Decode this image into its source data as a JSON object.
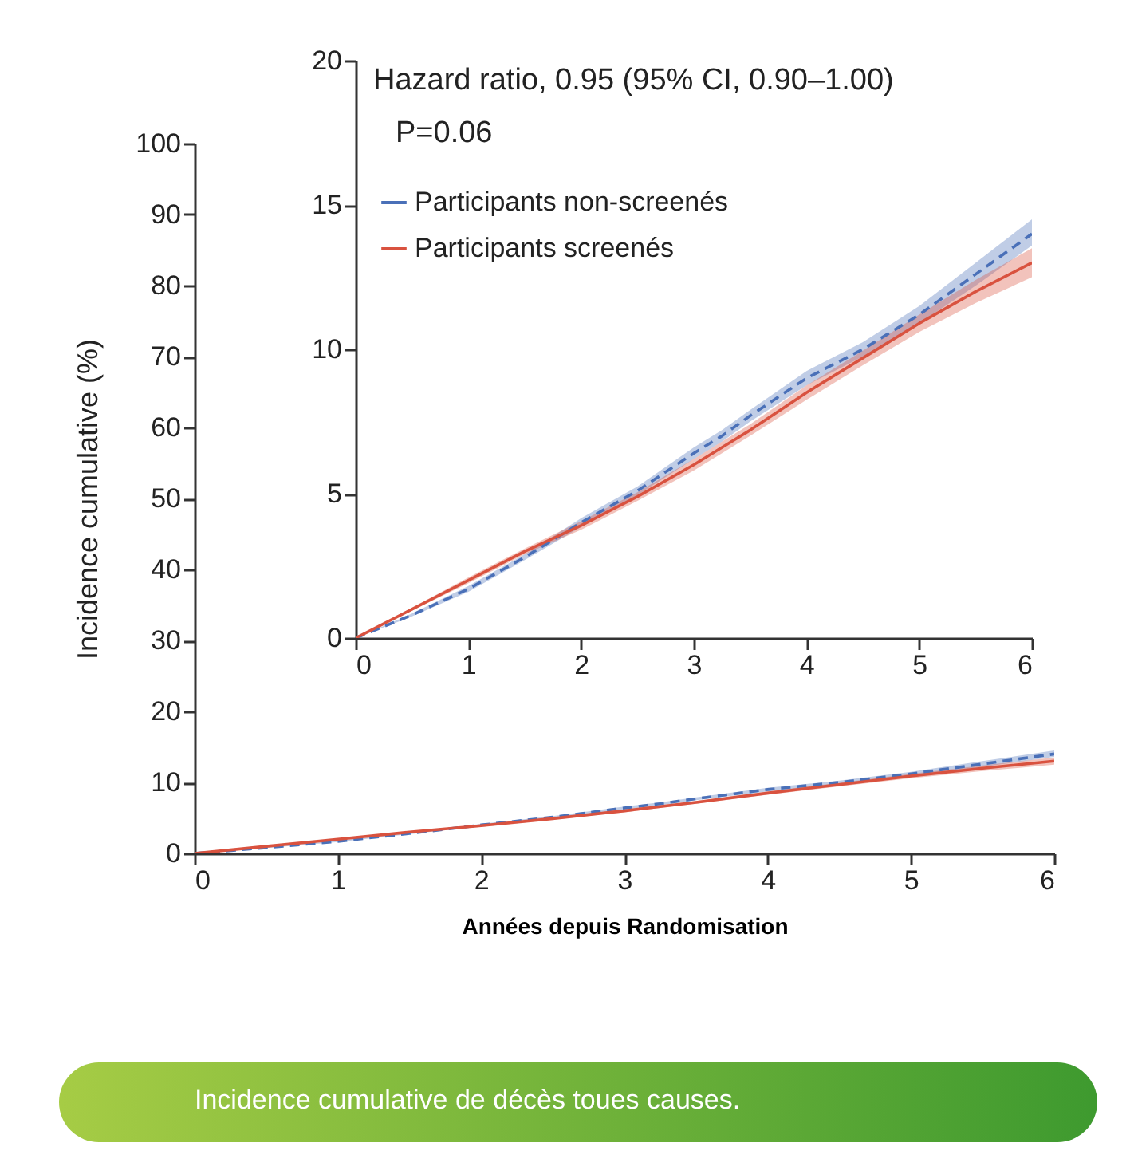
{
  "chart_data": [
    {
      "type": "line",
      "xlabel": "Années depuis Randomisation",
      "ylabel": "Incidence cumulative (%)",
      "annotations": [
        "Incidence cumulative de décès toues causes."
      ],
      "x": [
        0,
        0.5,
        1,
        1.5,
        2,
        2.5,
        3,
        3.25,
        3.5,
        4,
        4.5,
        5,
        5.5,
        6
      ],
      "xlim": [
        0,
        6
      ],
      "xticks": [
        0,
        1,
        2,
        3,
        4,
        5,
        6
      ],
      "ylim": [
        0,
        100
      ],
      "yticks": [
        0,
        10,
        20,
        30,
        40,
        50,
        60,
        70,
        80,
        90,
        100
      ],
      "grid": false,
      "legend": false,
      "series": [
        {
          "color": "#4a70b8",
          "line_style": "dashed",
          "values": [
            0,
            0.8,
            1.7,
            2.8,
            4.0,
            5.1,
            6.4,
            7.0,
            7.7,
            9.0,
            10.0,
            11.2,
            12.6,
            14.0
          ],
          "lower": [
            0,
            0.75,
            1.6,
            2.7,
            3.85,
            4.95,
            6.2,
            6.8,
            7.5,
            8.75,
            9.75,
            10.9,
            12.2,
            13.6
          ],
          "upper": [
            0,
            0.85,
            1.8,
            2.9,
            4.15,
            5.25,
            6.6,
            7.2,
            7.9,
            9.25,
            10.25,
            11.5,
            13.0,
            14.5
          ]
        },
        {
          "color": "#d9523f",
          "line_style": "solid",
          "values": [
            0,
            1.0,
            2.0,
            3.0,
            3.9,
            4.9,
            6.0,
            6.6,
            7.2,
            8.5,
            9.7,
            10.9,
            12.0,
            13.0
          ],
          "lower": [
            0,
            0.95,
            1.9,
            2.9,
            3.75,
            4.75,
            5.8,
            6.4,
            7.0,
            8.25,
            9.45,
            10.6,
            11.6,
            12.5
          ],
          "upper": [
            0,
            1.05,
            2.1,
            3.1,
            4.05,
            5.05,
            6.2,
            6.8,
            7.4,
            8.75,
            9.95,
            11.2,
            12.4,
            13.5
          ]
        }
      ]
    },
    {
      "type": "line",
      "annotations": [
        "Hazard ratio, 0.95 (95% CI, 0.90–1.00)",
        "P=0.06"
      ],
      "x": [
        0,
        0.5,
        1,
        1.5,
        2,
        2.5,
        3,
        3.25,
        3.5,
        4,
        4.5,
        5,
        5.5,
        6
      ],
      "xlim": [
        0,
        6
      ],
      "xticks": [
        0,
        1,
        2,
        3,
        4,
        5,
        6
      ],
      "ylim": [
        0,
        20
      ],
      "yticks": [
        0,
        5,
        10,
        15,
        20
      ],
      "grid": false,
      "legend": "top left",
      "series": [
        {
          "name": "Participants non-screenés",
          "color": "#4a70b8",
          "line_style": "dashed",
          "values": [
            0,
            0.8,
            1.7,
            2.8,
            4.0,
            5.1,
            6.4,
            7.0,
            7.7,
            9.0,
            10.0,
            11.2,
            12.6,
            14.0
          ],
          "lower": [
            0,
            0.75,
            1.6,
            2.7,
            3.85,
            4.95,
            6.2,
            6.8,
            7.5,
            8.75,
            9.75,
            10.9,
            12.2,
            13.6
          ],
          "upper": [
            0,
            0.85,
            1.8,
            2.9,
            4.15,
            5.25,
            6.6,
            7.2,
            7.9,
            9.25,
            10.25,
            11.5,
            13.0,
            14.5
          ]
        },
        {
          "name": "Participants screenés",
          "color": "#d9523f",
          "line_style": "solid",
          "values": [
            0,
            1.0,
            2.0,
            3.0,
            3.9,
            4.9,
            6.0,
            6.6,
            7.2,
            8.5,
            9.7,
            10.9,
            12.0,
            13.0
          ],
          "lower": [
            0,
            0.95,
            1.9,
            2.9,
            3.75,
            4.75,
            5.8,
            6.4,
            7.0,
            8.25,
            9.45,
            10.6,
            11.6,
            12.5
          ],
          "upper": [
            0,
            1.05,
            2.1,
            3.1,
            4.05,
            5.05,
            6.2,
            6.8,
            7.4,
            8.75,
            9.95,
            11.2,
            12.4,
            13.5
          ]
        }
      ]
    }
  ]
}
